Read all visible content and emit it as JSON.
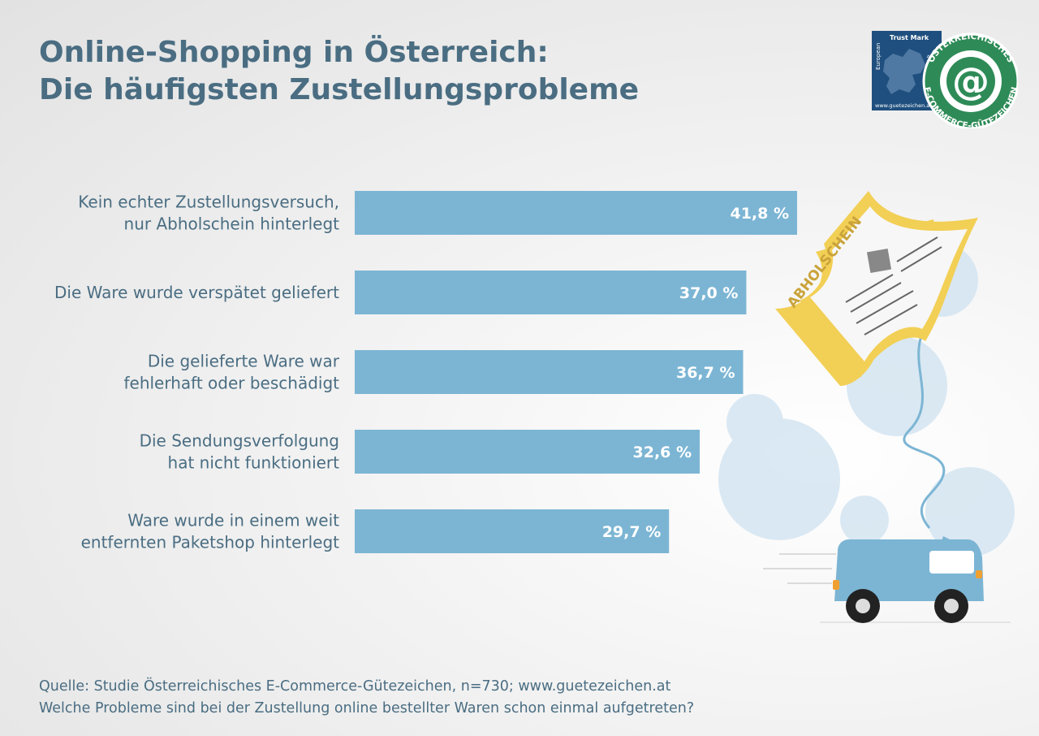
{
  "title": {
    "line1": "Online-Shopping in Österreich:",
    "line2": "Die häufigsten Zustellungsprobleme"
  },
  "chart_data": {
    "type": "bar",
    "orientation": "horizontal",
    "categories": [
      [
        "Kein echter Zustellungsversuch,",
        "nur Abholschein hinterlegt"
      ],
      [
        "Die Ware wurde verspätet geliefert"
      ],
      [
        "Die gelieferte Ware war",
        "fehlerhaft oder beschädigt"
      ],
      [
        "Die Sendungsverfolgung",
        "hat nicht funktioniert"
      ],
      [
        "Ware wurde in einem weit",
        "entfernten Paketshop hinterlegt"
      ]
    ],
    "values": [
      41.8,
      37.0,
      36.7,
      32.6,
      29.7
    ],
    "value_labels": [
      "41,8 %",
      "37,0 %",
      "36,7 %",
      "32,6 %",
      "29,7 %"
    ],
    "unit": "%",
    "xlim": [
      0,
      41.8
    ],
    "grid": false,
    "bar_color": "#7cb5d4"
  },
  "badge": {
    "trust_mark_text": "Trust Mark",
    "european_text": "European",
    "url_text": "www.guetezeichen.at",
    "ring_text_top": "ÖSTERREICHISCHES",
    "ring_text_bottom": "E-COMMERCE-GÜTEZEICHEN",
    "icon": "at-sign-icon",
    "blue": "#1f4f7e",
    "green": "#2e8b57"
  },
  "illustration": {
    "slip_text": "ABHOLSCHEIN",
    "slip_color": "#f2cf55",
    "van_color": "#7cb5d4"
  },
  "footer": {
    "source": "Quelle: Studie Österreichisches E-Commerce-Gütezeichen, n=730; www.guetezeichen.at",
    "question": "Welche Probleme sind bei der Zustellung online bestellter Waren schon einmal aufgetreten?"
  }
}
